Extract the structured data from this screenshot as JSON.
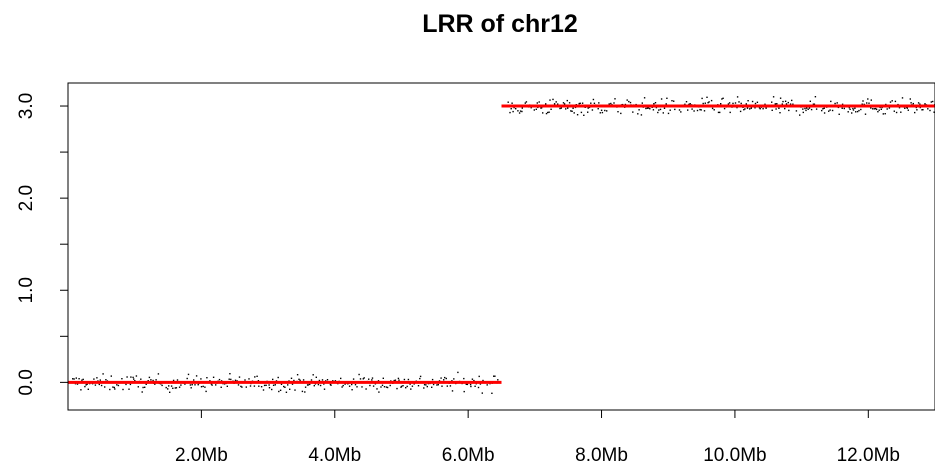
{
  "chart_data": {
    "type": "scatter",
    "title": "LRR of chr12",
    "xlabel": "",
    "ylabel": "",
    "xlim": [
      0,
      13.0
    ],
    "ylim": [
      -0.3,
      3.25
    ],
    "x_unit": "Mb",
    "x_ticks": [
      2,
      4,
      6,
      8,
      10,
      12
    ],
    "x_tick_labels": [
      "2.0Mb",
      "4.0Mb",
      "6.0Mb",
      "8.0Mb",
      "10.0Mb",
      "12.0Mb"
    ],
    "y_ticks": [
      0,
      1,
      2,
      3
    ],
    "y_tick_labels": [
      "0.0",
      "1.0",
      "2.0",
      "3.0"
    ],
    "grid": false,
    "legend": "none",
    "colors": {
      "points": "#000000",
      "segments": "#ff0000",
      "axes": "#000000"
    },
    "series": [
      {
        "kind": "points",
        "x_range": [
          0.05,
          6.45
        ],
        "mean": 0.0,
        "spread": 0.15,
        "count": 320
      },
      {
        "kind": "points",
        "x_range": [
          6.55,
          13.0
        ],
        "mean": 3.0,
        "spread": 0.15,
        "count": 360
      }
    ],
    "segments": [
      {
        "x0": 0.0,
        "x1": 6.5,
        "y": 0.0
      },
      {
        "x0": 6.5,
        "x1": 13.0,
        "y": 3.0
      }
    ]
  }
}
